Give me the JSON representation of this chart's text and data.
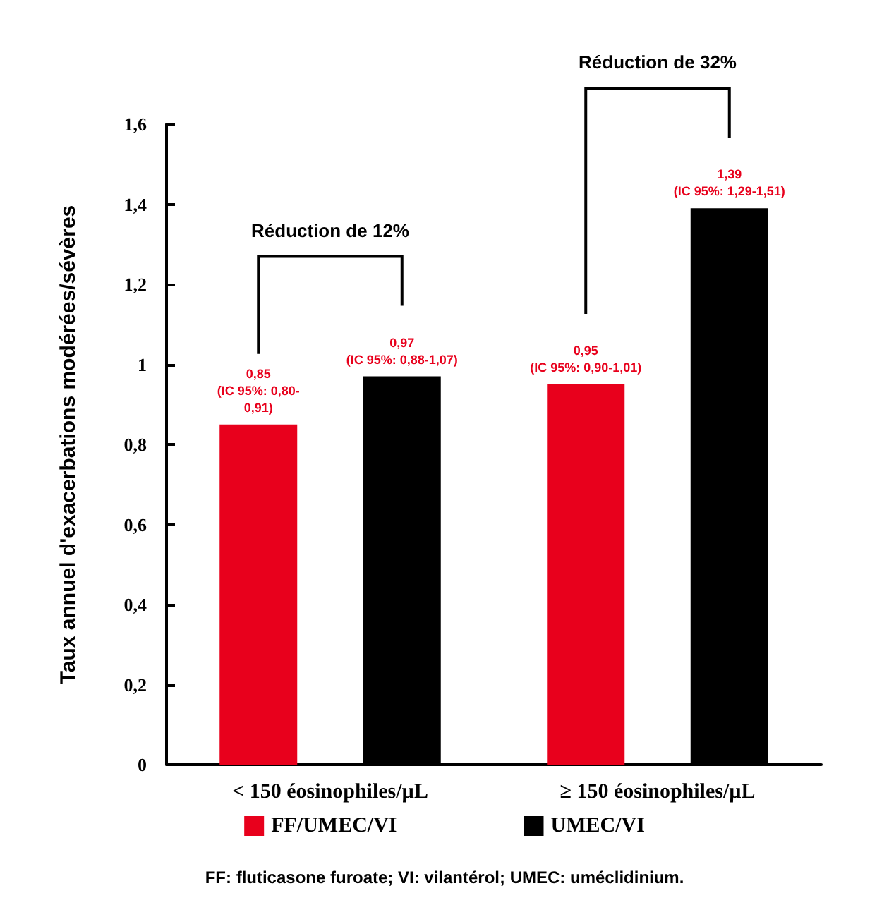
{
  "chart_data": {
    "type": "bar",
    "ylabel": "Taux annuel d'exacerbations modérées/sévères",
    "categories": [
      "< 150 éosinophiles/µL",
      "≥ 150 éosinophiles/µL"
    ],
    "series": [
      {
        "name": "FF/UMEC/VI",
        "color": "#e8001c",
        "values": [
          0.85,
          0.95
        ],
        "value_labels": [
          "0,85\n(IC 95%: 0,80-\n0,91)",
          "0,95\n(IC 95%: 0,90-1,01)"
        ]
      },
      {
        "name": "UMEC/VI",
        "color": "#000000",
        "values": [
          0.97,
          1.39
        ],
        "value_labels": [
          "0,97\n(IC 95%: 0,88-1,07)",
          "1,39\n(IC 95%: 1,29-1,51)"
        ]
      }
    ],
    "ylim": [
      0,
      1.6
    ],
    "yticks": [
      0,
      {
        "value": 0.2,
        "label": "0,2"
      },
      {
        "value": 0.4,
        "label": "0,4"
      },
      {
        "value": 0.6,
        "label": "0,6"
      },
      {
        "value": 0.8,
        "label": "0,8"
      },
      1,
      {
        "value": 1.2,
        "label": "1,2"
      },
      {
        "value": 1.4,
        "label": "1,4"
      },
      {
        "value": 1.6,
        "label": "1,6"
      }
    ],
    "grid": false,
    "legend": "bottom",
    "annotations": [
      "Réduction de 12%",
      "Réduction de 32%",
      "FF: fluticasone furoate; VI: vilantérol; UMEC: uméclidinium."
    ]
  }
}
